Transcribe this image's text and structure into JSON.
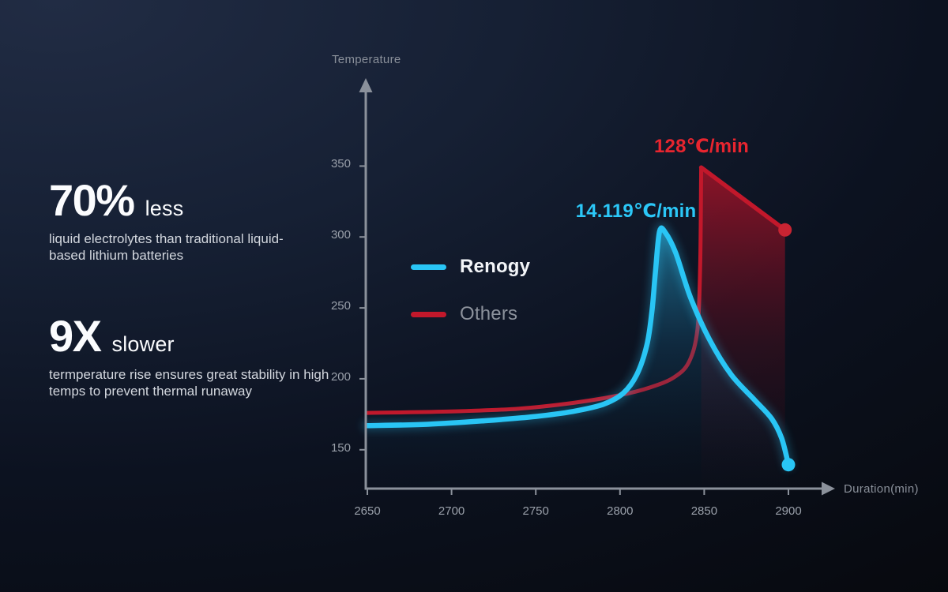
{
  "stats": [
    {
      "value": "70%",
      "suffix": "less",
      "description": "liquid electrolytes than traditional liquid-based lithium batteries"
    },
    {
      "value": "9X",
      "suffix": "slower",
      "description": "termperature rise ensures great stability in high temps to prevent thermal runaway"
    }
  ],
  "colors": {
    "renogy_accent": "#29C5F5",
    "others_accent": "#C2182B",
    "annotation_red": "#E8252F",
    "annotation_cyan": "#2BC7F7",
    "axis_gray": "#8B919B",
    "background_top": "#212C44",
    "background_bottom": "#07090E"
  },
  "chart_data": {
    "type": "line",
    "title": "",
    "xlabel": "Duration(min)",
    "ylabel": "Temperature",
    "x_ticks": [
      2650,
      2700,
      2750,
      2800,
      2850,
      2900
    ],
    "y_ticks": [
      350,
      300,
      250,
      200,
      150
    ],
    "xlim": [
      2650,
      2925
    ],
    "ylim": [
      122,
      405
    ],
    "grid": false,
    "legend_position": "inside-left",
    "series": [
      {
        "name": "Renogy",
        "color": "#29C5F5",
        "annotation": "14.119℃/min",
        "peak": [
          2823.5,
          304
        ],
        "endpoint": [
          2900,
          139.5
        ],
        "points": [
          [
            2650,
            167
          ],
          [
            2686,
            168
          ],
          [
            2720,
            170.5
          ],
          [
            2750,
            173.5
          ],
          [
            2772,
            177
          ],
          [
            2790,
            182
          ],
          [
            2802,
            190
          ],
          [
            2810,
            203
          ],
          [
            2816,
            224
          ],
          [
            2819,
            248
          ],
          [
            2821,
            275
          ],
          [
            2823.5,
            304
          ],
          [
            2827,
            303
          ],
          [
            2833,
            289
          ],
          [
            2842,
            257
          ],
          [
            2853,
            228
          ],
          [
            2866,
            203
          ],
          [
            2880,
            185
          ],
          [
            2890,
            172
          ],
          [
            2896,
            158
          ],
          [
            2900,
            139.5
          ]
        ]
      },
      {
        "name": "Others",
        "color": "#C2182B",
        "annotation": "128℃/min",
        "peak": [
          2848.2,
          349
        ],
        "endpoint": [
          2898,
          305
        ],
        "points": [
          [
            2650,
            176
          ],
          [
            2700,
            177
          ],
          [
            2740,
            179
          ],
          [
            2772,
            183
          ],
          [
            2800,
            188.5
          ],
          [
            2818,
            194
          ],
          [
            2832,
            201
          ],
          [
            2841,
            212
          ],
          [
            2846,
            235
          ],
          [
            2847.6,
            280
          ],
          [
            2848.2,
            349
          ]
        ],
        "drop": [
          [
            2848.2,
            349
          ],
          [
            2898,
            305
          ]
        ]
      }
    ]
  }
}
